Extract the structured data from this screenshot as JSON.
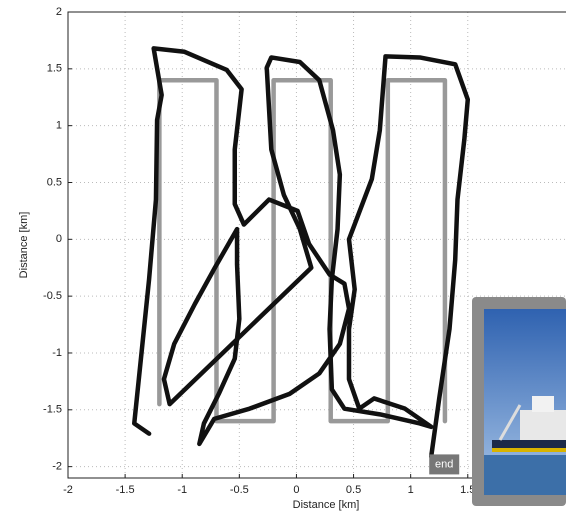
{
  "chart_data": {
    "type": "line",
    "xlabel": "Distance [km]",
    "ylabel": "Distance [km]",
    "xlim": [
      -2,
      2.36
    ],
    "ylim": [
      -2.1,
      2
    ],
    "xticks": [
      -2,
      -1.5,
      -1,
      -0.5,
      0,
      0.5,
      1,
      1.5
    ],
    "yticks": [
      -2,
      -1.5,
      -1,
      -0.5,
      0,
      0.5,
      1,
      1.5,
      2
    ],
    "grid": true,
    "annotation": "end",
    "series": [
      {
        "color": "#999999",
        "x": [
          -1.2,
          -1.2,
          -0.7,
          -0.7,
          -0.2,
          -0.2,
          0.3,
          0.3,
          0.8,
          0.8,
          1.3,
          1.3
        ],
        "values": [
          -1.45,
          1.4,
          1.4,
          -1.6,
          -1.6,
          1.4,
          1.4,
          -1.6,
          -1.6,
          1.4,
          1.4,
          -1.6
        ]
      },
      {
        "color": "#111111",
        "x": [
          -1.29,
          -1.42,
          -1.38,
          -1.29,
          -1.23,
          -1.22,
          -1.18,
          -1.25,
          -0.98,
          -0.61,
          -0.48,
          -0.54,
          -0.54,
          -0.46,
          -0.24,
          0.01,
          0.11,
          0.29,
          0.42,
          0.46,
          0.38,
          0.2,
          -0.06,
          -0.41,
          -0.72,
          -0.85,
          -0.81,
          -0.68,
          -0.54,
          -0.5,
          -0.52,
          -0.52,
          -0.72,
          -0.89,
          -1.07,
          -1.16,
          -1.11,
          0.13,
          0.03,
          -0.11,
          -0.22,
          -0.26,
          -0.22,
          0.03,
          0.2,
          0.32,
          0.38,
          0.36,
          0.31,
          0.29,
          0.31,
          0.42,
          0.73,
          1.08,
          1.18,
          0.95,
          0.68,
          0.55,
          0.46,
          0.46,
          0.51,
          0.46,
          0.66,
          0.73,
          0.78,
          1.08,
          1.39,
          1.5,
          1.47,
          1.41,
          1.39,
          1.34,
          1.25,
          1.18
        ],
        "values": [
          -1.71,
          -1.62,
          -1.23,
          -0.35,
          0.35,
          1.05,
          1.27,
          1.68,
          1.65,
          1.49,
          1.32,
          0.79,
          0.31,
          0.13,
          0.35,
          0.25,
          -0.04,
          -0.31,
          -0.39,
          -0.61,
          -0.92,
          -1.18,
          -1.36,
          -1.49,
          -1.58,
          -1.8,
          -1.62,
          -1.36,
          -1.05,
          -0.7,
          -0.22,
          0.09,
          -0.26,
          -0.57,
          -0.92,
          -1.23,
          -1.45,
          -0.25,
          0.09,
          0.39,
          0.79,
          1.51,
          1.6,
          1.56,
          1.4,
          0.96,
          0.57,
          0.09,
          -0.35,
          -0.79,
          -1.32,
          -1.49,
          -1.54,
          -1.62,
          -1.65,
          -1.49,
          -1.4,
          -1.49,
          -1.23,
          -0.79,
          -0.44,
          0,
          0.53,
          0.96,
          1.61,
          1.6,
          1.54,
          1.23,
          0.88,
          0.35,
          -0.18,
          -0.79,
          -1.4,
          -1.91
        ]
      }
    ]
  }
}
